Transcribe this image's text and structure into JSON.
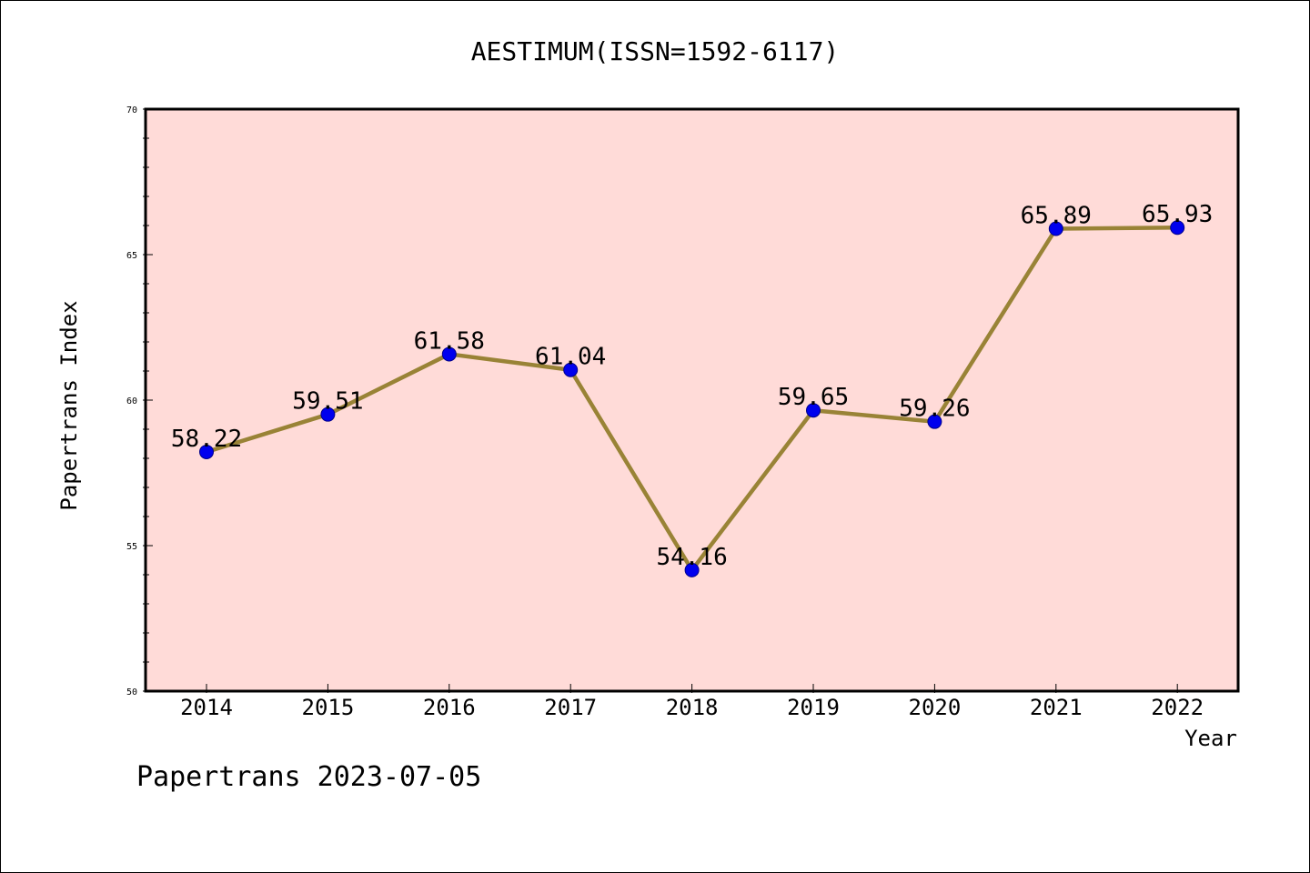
{
  "chart_data": {
    "type": "line",
    "title": "AESTIMUM(ISSN=1592-6117)",
    "xlabel": "Year",
    "ylabel": "Papertrans Index",
    "categories": [
      "2014",
      "2015",
      "2016",
      "2017",
      "2018",
      "2019",
      "2020",
      "2021",
      "2022"
    ],
    "series": [
      {
        "values": [
          58.22,
          59.51,
          61.58,
          61.04,
          54.16,
          59.65,
          59.26,
          65.89,
          65.93
        ],
        "data_labels": [
          "58.22",
          "59.51",
          "61.58",
          "61.04",
          "54.16",
          "59.65",
          "59.26",
          "65.89",
          "65.93"
        ]
      }
    ],
    "ylim": [
      50,
      70
    ],
    "yticks": [
      "50",
      "55",
      "60",
      "65",
      "70"
    ],
    "grid": false,
    "legend": "none",
    "colors": {
      "plot_background": "#ffdbd8",
      "line": "#998336",
      "marker_fill": "#0000ee",
      "marker_stroke": "#00008b"
    }
  },
  "footer": {
    "text": "Papertrans 2023-07-05"
  }
}
